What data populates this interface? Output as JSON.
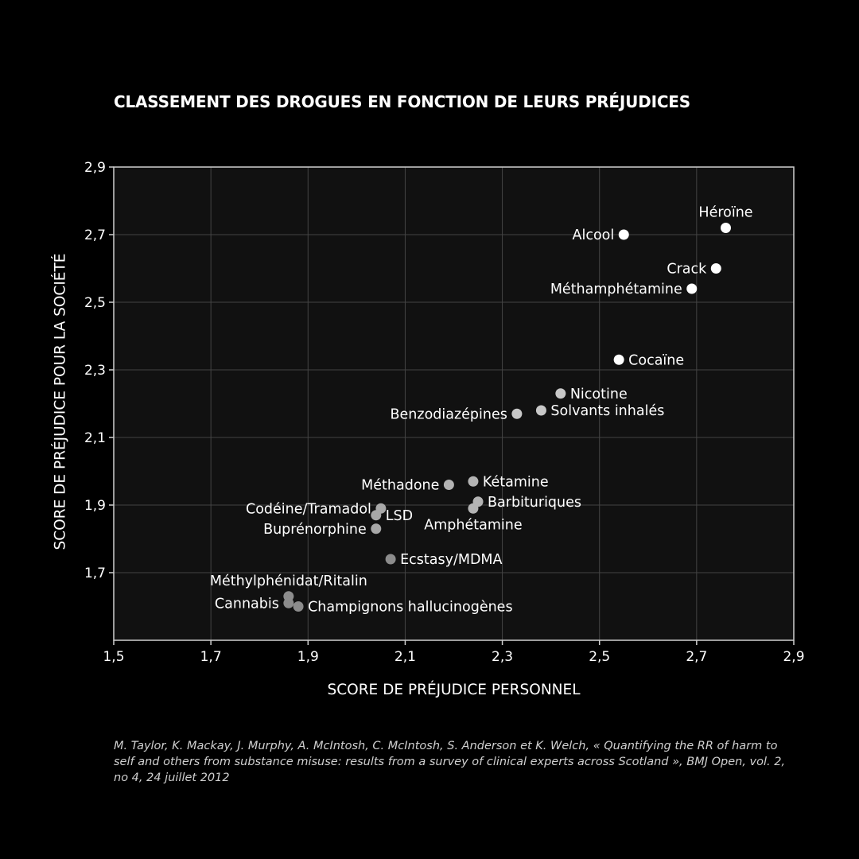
{
  "chart_data": {
    "type": "scatter",
    "title": "CLASSEMENT DES DROGUES EN FONCTION DE LEURS PRÉJUDICES",
    "xlabel": "SCORE DE PRÉJUDICE PERSONNEL",
    "ylabel": "SCORE DE PRÉJUDICE POUR LA SOCIÉTÉ",
    "xlim": [
      1.5,
      2.9
    ],
    "ylim": [
      1.5,
      2.9
    ],
    "xticks": [
      "1,5",
      "1,7",
      "1,9",
      "2,1",
      "2,3",
      "2,5",
      "2,7",
      "2,9"
    ],
    "yticks": [
      "1,7",
      "1,9",
      "2,1",
      "2,3",
      "2,5",
      "2,7",
      "2,9"
    ],
    "grid": true,
    "points": [
      {
        "label": "Héroïne",
        "x": 2.76,
        "y": 2.72,
        "color": "#ffffff",
        "label_pos": "above"
      },
      {
        "label": "Alcool",
        "x": 2.55,
        "y": 2.7,
        "color": "#ffffff",
        "label_pos": "left"
      },
      {
        "label": "Crack",
        "x": 2.74,
        "y": 2.6,
        "color": "#ffffff",
        "label_pos": "left"
      },
      {
        "label": "Méthamphétamine",
        "x": 2.69,
        "y": 2.54,
        "color": "#ffffff",
        "label_pos": "left"
      },
      {
        "label": "Cocaïne",
        "x": 2.54,
        "y": 2.33,
        "color": "#ffffff",
        "label_pos": "right"
      },
      {
        "label": "Nicotine",
        "x": 2.42,
        "y": 2.23,
        "color": "#c8c8c8",
        "label_pos": "right"
      },
      {
        "label": "Solvants inhalés",
        "x": 2.38,
        "y": 2.18,
        "color": "#c8c8c8",
        "label_pos": "right"
      },
      {
        "label": "Benzodiazépines",
        "x": 2.33,
        "y": 2.17,
        "color": "#c8c8c8",
        "label_pos": "left"
      },
      {
        "label": "Kétamine",
        "x": 2.24,
        "y": 1.97,
        "color": "#b4b4b4",
        "label_pos": "right"
      },
      {
        "label": "Méthadone",
        "x": 2.19,
        "y": 1.96,
        "color": "#b4b4b4",
        "label_pos": "left"
      },
      {
        "label": "Barbituriques",
        "x": 2.25,
        "y": 1.91,
        "color": "#b4b4b4",
        "label_pos": "right"
      },
      {
        "label": "Amphétamine",
        "x": 2.24,
        "y": 1.89,
        "color": "#b4b4b4",
        "label_pos": "below"
      },
      {
        "label": "Codéine/Tramadol",
        "x": 2.05,
        "y": 1.89,
        "color": "#a8a8a8",
        "label_pos": "left"
      },
      {
        "label": "LSD",
        "x": 2.04,
        "y": 1.87,
        "color": "#a8a8a8",
        "label_pos": "right"
      },
      {
        "label": "Buprénorphine",
        "x": 2.04,
        "y": 1.83,
        "color": "#a8a8a8",
        "label_pos": "left"
      },
      {
        "label": "Ecstasy/MDMA",
        "x": 2.07,
        "y": 1.74,
        "color": "#8c8c8c",
        "label_pos": "right"
      },
      {
        "label": "Méthylphénidat/Ritalin",
        "x": 1.86,
        "y": 1.63,
        "color": "#8c8c8c",
        "label_pos": "above"
      },
      {
        "label": "Cannabis",
        "x": 1.86,
        "y": 1.61,
        "color": "#8c8c8c",
        "label_pos": "left"
      },
      {
        "label": "Champignons hallucinogènes",
        "x": 1.88,
        "y": 1.6,
        "color": "#8c8c8c",
        "label_pos": "right"
      }
    ]
  },
  "source": "M. Taylor, K. Mackay, J. Murphy, A. McIntosh, C. McIntosh, S. Anderson et K. Welch, « Quantifying the RR of harm to self and others from substance misuse: results from a survey of clinical experts across Scotland », BMJ Open, vol. 2, no 4, 24 juillet 2012",
  "colors": {
    "background": "#000000",
    "plot_background": "#111111",
    "grid": "#444444",
    "frame": "#cfcfcf",
    "text": "#ffffff"
  }
}
